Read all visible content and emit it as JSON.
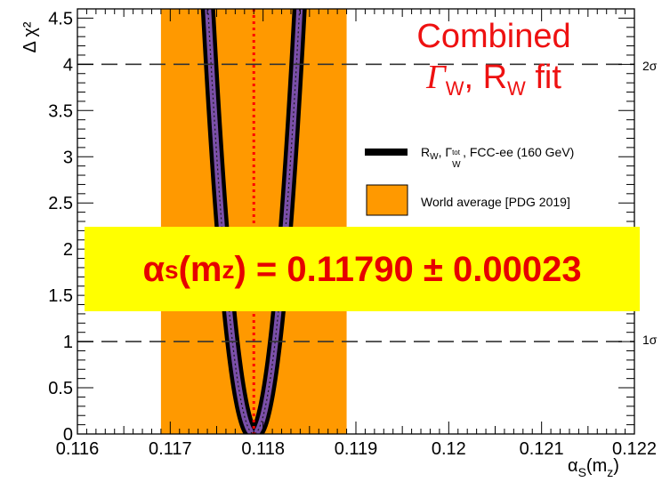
{
  "chart_data": {
    "type": "line",
    "xlabel": "αS(mz)",
    "ylabel": "Δ χ²",
    "xlim": [
      0.116,
      0.122
    ],
    "ylim": [
      0,
      4.6
    ],
    "x_ticks": [
      "0.116",
      "0.117",
      "0.118",
      "0.119",
      "0.12",
      "0.121",
      "0.122"
    ],
    "y_ticks": [
      "0",
      "0.5",
      "1",
      "1.5",
      "2",
      "2.5",
      "3",
      "3.5",
      "4",
      "4.5"
    ],
    "world_average_band": [
      0.1169,
      0.1189
    ],
    "central_value": 0.1179,
    "uncertainty": 0.00023,
    "reference_lines": [
      {
        "y": 1,
        "label": "1σ"
      },
      {
        "y": 4,
        "label": "2σ"
      }
    ],
    "series": [
      {
        "name": "R_W, Γ_W^tot, FCC-ee (160 GeV)",
        "x0": 0.1179,
        "sigma": 0.00023,
        "color": "#000000"
      }
    ],
    "legend_placement": "right"
  },
  "annotations": {
    "combined_line1": "Combined",
    "combined_gamma": "Γ",
    "combined_w1": "W",
    "combined_mid": ", R",
    "combined_w2": "W",
    "combined_end": " fit",
    "banner_alpha": "α",
    "banner_s": "s",
    "banner_m": "(m",
    "banner_z": "z",
    "banner_rest": ") = 0.11790 ± 0.00023"
  },
  "legend": {
    "entry1_r": "R",
    "entry1_w": "W",
    "entry1_sep": ", Γ",
    "entry1_tot": "tot",
    "entry1_w2": "W",
    "entry1_rest": ", FCC-ee (160 GeV)",
    "entry2": "World average [PDG 2019]"
  },
  "axis_title": {
    "x_alpha": "α",
    "x_s": "S",
    "x_m": "(m",
    "x_z": "z",
    "x_close": ")"
  },
  "colors": {
    "band": "#ff9900",
    "curve_fill": "#7a4fa8",
    "curve_edge": "#000000",
    "central_line": "#ff0000",
    "banner_bg": "#ffff00",
    "banner_text": "#e60000",
    "title_text": "#ee1111"
  }
}
